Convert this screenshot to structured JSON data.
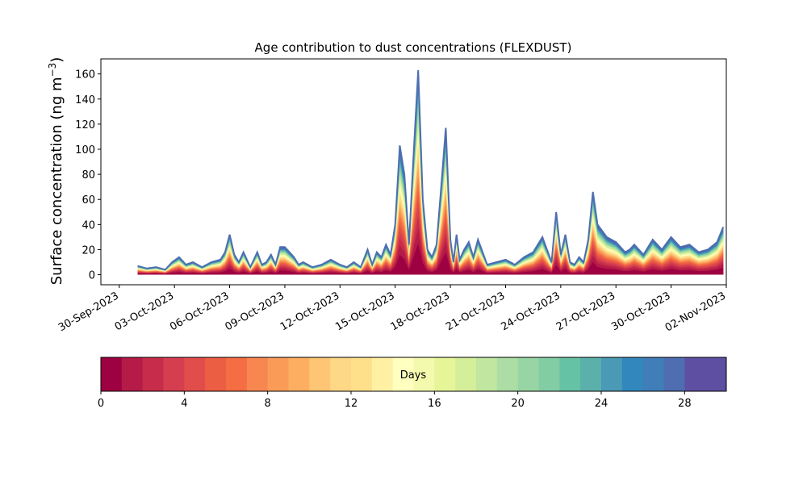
{
  "chart_data": {
    "type": "area",
    "title": "Age contribution to dust concentrations (FLEXDUST)",
    "ylabel": "Surface concentration (ng m",
    "ylabel_sup": "−3",
    "ylabel_close": ")",
    "xlabel": "",
    "ylim": [
      -8,
      172
    ],
    "yticks": [
      0,
      20,
      40,
      60,
      80,
      100,
      120,
      140,
      160
    ],
    "x_range_dates": [
      "2023-09-29",
      "2023-11-02"
    ],
    "xticks": [
      "30-Sep-2023",
      "03-Oct-2023",
      "06-Oct-2023",
      "09-Oct-2023",
      "12-Oct-2023",
      "15-Oct-2023",
      "18-Oct-2023",
      "21-Oct-2023",
      "24-Oct-2023",
      "27-Oct-2023",
      "30-Oct-2023",
      "02-Nov-2023"
    ],
    "xtick_dates": [
      "2023-09-30",
      "2023-10-03",
      "2023-10-06",
      "2023-10-09",
      "2023-10-12",
      "2023-10-15",
      "2023-10-18",
      "2023-10-21",
      "2023-10-24",
      "2023-10-27",
      "2023-10-30",
      "2023-11-02"
    ],
    "stacking": "cumulative by age bin (0-1 day at bottom, 29-30 days at top)",
    "total_concentration": {
      "dates": [
        "2023-10-01 00:00",
        "2023-10-01 12:00",
        "2023-10-02 00:00",
        "2023-10-02 12:00",
        "2023-10-02 21:00",
        "2023-10-03 06:00",
        "2023-10-03 15:00",
        "2023-10-04 00:00",
        "2023-10-04 12:00",
        "2023-10-05 00:00",
        "2023-10-05 12:00",
        "2023-10-05 18:00",
        "2023-10-06 00:00",
        "2023-10-06 06:00",
        "2023-10-06 12:00",
        "2023-10-06 18:00",
        "2023-10-07 03:00",
        "2023-10-07 12:00",
        "2023-10-07 18:00",
        "2023-10-08 00:00",
        "2023-10-08 06:00",
        "2023-10-08 12:00",
        "2023-10-08 18:00",
        "2023-10-09 00:00",
        "2023-10-09 06:00",
        "2023-10-09 12:00",
        "2023-10-09 18:00",
        "2023-10-10 00:00",
        "2023-10-10 12:00",
        "2023-10-11 00:00",
        "2023-10-11 12:00",
        "2023-10-12 00:00",
        "2023-10-12 09:00",
        "2023-10-12 18:00",
        "2023-10-13 03:00",
        "2023-10-13 12:00",
        "2023-10-13 18:00",
        "2023-10-14 00:00",
        "2023-10-14 06:00",
        "2023-10-14 12:00",
        "2023-10-14 18:00",
        "2023-10-15 00:00",
        "2023-10-15 06:00",
        "2023-10-15 12:00",
        "2023-10-15 18:00",
        "2023-10-15 23:00",
        "2023-10-16 06:00",
        "2023-10-16 12:00",
        "2023-10-16 18:00",
        "2023-10-17 00:00",
        "2023-10-17 06:00",
        "2023-10-17 12:00",
        "2023-10-17 18:00",
        "2023-10-18 00:00",
        "2023-10-18 04:00",
        "2023-10-18 08:00",
        "2023-10-18 12:00",
        "2023-10-18 18:00",
        "2023-10-19 00:00",
        "2023-10-19 06:00",
        "2023-10-19 12:00",
        "2023-10-20 00:00",
        "2023-10-20 12:00",
        "2023-10-21 00:00",
        "2023-10-21 12:00",
        "2023-10-22 00:00",
        "2023-10-22 12:00",
        "2023-10-23 00:00",
        "2023-10-23 12:00",
        "2023-10-23 18:00",
        "2023-10-24 00:00",
        "2023-10-24 06:00",
        "2023-10-24 12:00",
        "2023-10-24 18:00",
        "2023-10-25 00:00",
        "2023-10-25 06:00",
        "2023-10-25 12:00",
        "2023-10-25 18:00",
        "2023-10-26 00:00",
        "2023-10-26 12:00",
        "2023-10-27 00:00",
        "2023-10-27 06:00",
        "2023-10-27 12:00",
        "2023-10-27 18:00",
        "2023-10-28 00:00",
        "2023-10-28 12:00",
        "2023-10-29 00:00",
        "2023-10-29 12:00",
        "2023-10-30 00:00",
        "2023-10-30 12:00",
        "2023-10-31 00:00",
        "2023-10-31 12:00",
        "2023-11-01 00:00",
        "2023-11-01 12:00",
        "2023-11-01 20:00"
      ],
      "values": [
        7,
        5,
        6,
        4,
        10,
        14,
        8,
        10,
        6,
        10,
        12,
        18,
        32,
        16,
        10,
        18,
        6,
        18,
        8,
        10,
        16,
        8,
        22,
        22,
        18,
        14,
        8,
        10,
        6,
        8,
        12,
        8,
        6,
        10,
        6,
        20,
        8,
        18,
        14,
        24,
        16,
        40,
        103,
        80,
        24,
        85,
        163,
        60,
        20,
        14,
        24,
        70,
        117,
        28,
        10,
        32,
        12,
        20,
        26,
        14,
        28,
        8,
        10,
        12,
        8,
        14,
        18,
        30,
        10,
        50,
        16,
        32,
        10,
        8,
        14,
        10,
        28,
        66,
        40,
        30,
        26,
        22,
        18,
        20,
        24,
        16,
        28,
        20,
        30,
        22,
        24,
        18,
        20,
        26,
        38
      ]
    },
    "colorbar": {
      "label": "Days",
      "min": 0,
      "max": 30,
      "ticks": [
        0,
        4,
        8,
        12,
        16,
        20,
        24,
        28
      ],
      "colormap": "Spectral",
      "colors": [
        "#9e0142",
        "#b41b47",
        "#c72c4a",
        "#d53e4f",
        "#e14d4a",
        "#ec5e44",
        "#f46d43",
        "#f78651",
        "#fa9c58",
        "#fdae61",
        "#fdc574",
        "#fed787",
        "#fee08b",
        "#fff0a4",
        "#ffffbf",
        "#f3faad",
        "#e6f598",
        "#d5ee9a",
        "#c1e6a0",
        "#abdda4",
        "#98d5a4",
        "#83cda5",
        "#66c2a5",
        "#5bb0ac",
        "#4b9ab5",
        "#3288bd",
        "#3f7eb8",
        "#4e6eb1",
        "#5e4fa2",
        "#5e4fa2"
      ]
    },
    "grid": false
  }
}
